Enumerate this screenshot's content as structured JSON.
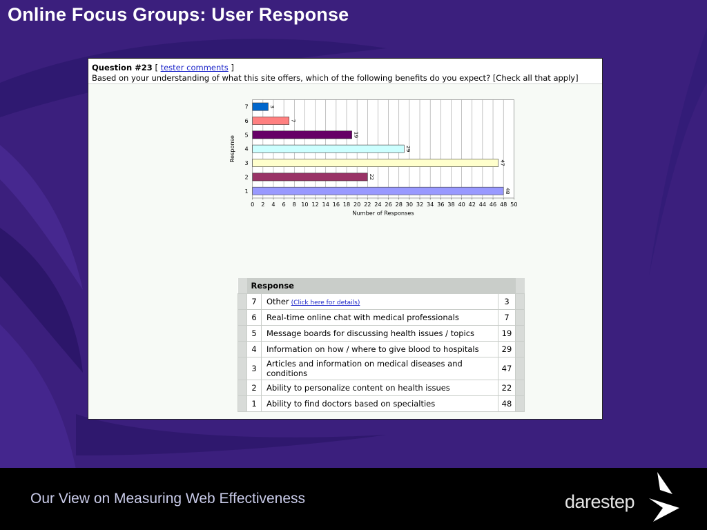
{
  "slide": {
    "title": "Online Focus Groups: User Response",
    "footer_text": "Our View on Measuring Web Effectiveness",
    "logo_text": "darestep"
  },
  "question": {
    "number_label": "Question #23",
    "comments_link": "tester comments",
    "text": "Based on your understanding of what this site offers, which of the following benefits do you expect? [Check all that apply]"
  },
  "table": {
    "header": "Response",
    "rows": [
      {
        "num": "7",
        "label": "Other",
        "count": "3",
        "link": "(Click here for details)"
      },
      {
        "num": "6",
        "label": "Real-time online chat with medical professionals",
        "count": "7"
      },
      {
        "num": "5",
        "label": "Message boards for discussing health issues / topics",
        "count": "19"
      },
      {
        "num": "4",
        "label": "Information on how / where to give blood to hospitals",
        "count": "29"
      },
      {
        "num": "3",
        "label": "Articles and information on medical diseases and conditions",
        "count": "47"
      },
      {
        "num": "2",
        "label": "Ability to personalize content on health issues",
        "count": "22"
      },
      {
        "num": "1",
        "label": "Ability to find doctors based on specialties",
        "count": "48"
      }
    ]
  },
  "chart_data": {
    "type": "bar",
    "orientation": "horizontal",
    "categories": [
      "1",
      "2",
      "3",
      "4",
      "5",
      "6",
      "7"
    ],
    "values": [
      48,
      22,
      47,
      29,
      19,
      7,
      3
    ],
    "colors": [
      "#9999ff",
      "#993366",
      "#ffffcc",
      "#ccffff",
      "#660066",
      "#ff8080",
      "#0066cc"
    ],
    "xlabel": "Number of Responses",
    "ylabel": "Response",
    "xlim": [
      0,
      50
    ],
    "xticks": [
      0,
      2,
      4,
      6,
      8,
      10,
      12,
      14,
      16,
      18,
      20,
      22,
      24,
      26,
      28,
      30,
      32,
      34,
      36,
      38,
      40,
      42,
      44,
      46,
      48,
      50
    ],
    "grid": true,
    "data_labels": true
  }
}
